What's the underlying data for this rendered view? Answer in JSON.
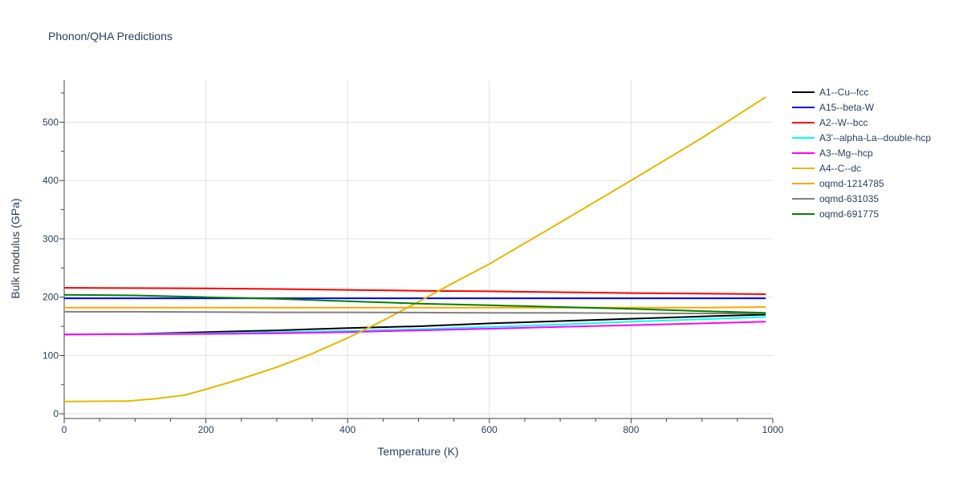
{
  "chart_data": {
    "type": "line",
    "title": "Phonon/QHA Predictions",
    "xlabel": "Temperature (K)",
    "ylabel": "Bulk modulus (GPa)",
    "xlim": [
      0,
      1000
    ],
    "ylim": [
      -8,
      572
    ],
    "xticks": [
      0,
      200,
      400,
      600,
      800,
      1000
    ],
    "yticks": [
      0,
      100,
      200,
      300,
      400,
      500
    ],
    "grid": true,
    "legend_position": "top-right",
    "series": [
      {
        "name": "A1--Cu--fcc",
        "color": "#000000",
        "x": [
          0,
          100,
          200,
          300,
          400,
          500,
          600,
          700,
          800,
          900,
          990
        ],
        "y": [
          136,
          137,
          140,
          143,
          147,
          150,
          155,
          159,
          163,
          167,
          170
        ]
      },
      {
        "name": "A15--beta-W",
        "color": "#0000ff",
        "x": [
          0,
          100,
          200,
          300,
          400,
          500,
          600,
          700,
          800,
          900,
          990
        ],
        "y": [
          198,
          198,
          198,
          198,
          198,
          198,
          198,
          198,
          198,
          198,
          198
        ]
      },
      {
        "name": "A2--W--bcc",
        "color": "#ff0000",
        "x": [
          0,
          100,
          200,
          300,
          400,
          500,
          600,
          700,
          800,
          900,
          990
        ],
        "y": [
          216,
          215.5,
          215,
          214,
          212.5,
          211,
          210,
          208.5,
          207,
          206,
          205
        ]
      },
      {
        "name": "A3'--alpha-La--double-hcp",
        "color": "#00ffff",
        "x": [
          0,
          100,
          200,
          300,
          400,
          500,
          600,
          700,
          800,
          900,
          990
        ],
        "y": [
          136,
          137,
          138,
          140,
          142,
          145,
          149,
          153,
          158,
          162,
          166
        ]
      },
      {
        "name": "A3--Mg--hcp",
        "color": "#ff00ff",
        "x": [
          0,
          100,
          200,
          300,
          400,
          500,
          600,
          700,
          800,
          900,
          990
        ],
        "y": [
          136,
          136.5,
          137,
          138,
          140,
          143,
          146,
          149,
          152,
          155,
          158
        ]
      },
      {
        "name": "A4--C--dc",
        "color": "#e6b800",
        "x": [
          0,
          90,
          130,
          170,
          200,
          250,
          300,
          350,
          400,
          450,
          500,
          550,
          600,
          700,
          800,
          900,
          990
        ],
        "y": [
          21,
          22,
          26,
          32,
          42,
          60,
          80,
          103,
          130,
          160,
          192,
          225,
          257,
          328,
          400,
          473,
          543
        ]
      },
      {
        "name": "oqmd-1214785",
        "color": "#ffa500",
        "x": [
          0,
          100,
          200,
          300,
          400,
          500,
          600,
          700,
          800,
          900,
          990
        ],
        "y": [
          182,
          182,
          182,
          182,
          182,
          182,
          182,
          182,
          182,
          182,
          183
        ]
      },
      {
        "name": "oqmd-631035",
        "color": "#808080",
        "x": [
          0,
          100,
          200,
          300,
          400,
          500,
          600,
          700,
          800,
          900,
          990
        ],
        "y": [
          175,
          175,
          174.5,
          174,
          174,
          173.5,
          173,
          173,
          172.5,
          172,
          172
        ]
      },
      {
        "name": "oqmd-691775",
        "color": "#008000",
        "x": [
          0,
          100,
          200,
          300,
          400,
          500,
          600,
          700,
          800,
          900,
          990
        ],
        "y": [
          204,
          203,
          200,
          197,
          193,
          189,
          186,
          183,
          180,
          176,
          173
        ]
      }
    ]
  }
}
